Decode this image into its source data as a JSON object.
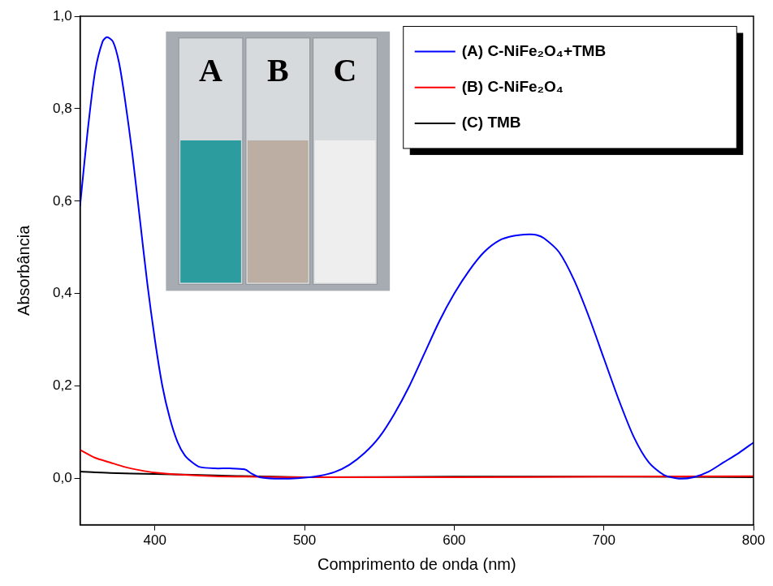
{
  "chart_data": {
    "type": "line",
    "x_label": "Comprimento de onda (nm)",
    "y_label": "Absorbância",
    "xlim": [
      350,
      800
    ],
    "xticks": [
      400,
      500,
      600,
      700,
      800
    ],
    "ylim": [
      -0.1,
      1.0
    ],
    "yticks": [
      {
        "value": 0.0,
        "label": "0,0"
      },
      {
        "value": 0.2,
        "label": "0,2"
      },
      {
        "value": 0.4,
        "label": "0,4"
      },
      {
        "value": 0.6,
        "label": "0,6"
      },
      {
        "value": 0.8,
        "label": "0,8"
      },
      {
        "value": 1.0,
        "label": "1,0"
      }
    ],
    "grid": false,
    "legend": "top-right",
    "annotations": [
      {
        "text": "A"
      },
      {
        "text": "B"
      },
      {
        "text": "C"
      }
    ],
    "series": [
      {
        "name": "(A) C-NiFe₂O₄+TMB",
        "color": "#0000ff",
        "x": [
          350,
          355,
          360,
          365,
          368,
          372,
          376,
          380,
          385,
          390,
          395,
          400,
          405,
          410,
          415,
          420,
          425,
          430,
          440,
          450,
          460,
          465,
          470,
          480,
          490,
          500,
          510,
          520,
          530,
          540,
          550,
          560,
          570,
          580,
          590,
          600,
          610,
          620,
          630,
          640,
          650,
          655,
          660,
          670,
          680,
          690,
          700,
          710,
          720,
          730,
          740,
          750,
          760,
          770,
          780,
          790,
          800
        ],
        "values": [
          0.59,
          0.75,
          0.88,
          0.945,
          0.955,
          0.945,
          0.9,
          0.82,
          0.7,
          0.56,
          0.42,
          0.3,
          0.2,
          0.13,
          0.08,
          0.05,
          0.035,
          0.025,
          0.022,
          0.022,
          0.02,
          0.01,
          0.003,
          0.0,
          0.0,
          0.002,
          0.006,
          0.014,
          0.03,
          0.055,
          0.09,
          0.14,
          0.2,
          0.27,
          0.34,
          0.4,
          0.45,
          0.49,
          0.515,
          0.525,
          0.528,
          0.527,
          0.52,
          0.49,
          0.43,
          0.35,
          0.26,
          0.17,
          0.09,
          0.035,
          0.008,
          0.0,
          0.003,
          0.015,
          0.035,
          0.055,
          0.078
        ]
      },
      {
        "name": "(B) C-NiFe₂O₄",
        "color": "#ff0000",
        "x": [
          350,
          360,
          370,
          380,
          390,
          400,
          420,
          440,
          460,
          500,
          600,
          700,
          800
        ],
        "values": [
          0.062,
          0.045,
          0.035,
          0.025,
          0.018,
          0.013,
          0.008,
          0.005,
          0.004,
          0.003,
          0.003,
          0.004,
          0.005
        ]
      },
      {
        "name": "(C) TMB",
        "color": "#000000",
        "x": [
          350,
          370,
          400,
          450,
          500,
          600,
          700,
          800
        ],
        "values": [
          0.015,
          0.012,
          0.01,
          0.006,
          0.003,
          0.004,
          0.004,
          0.003
        ]
      }
    ]
  }
}
